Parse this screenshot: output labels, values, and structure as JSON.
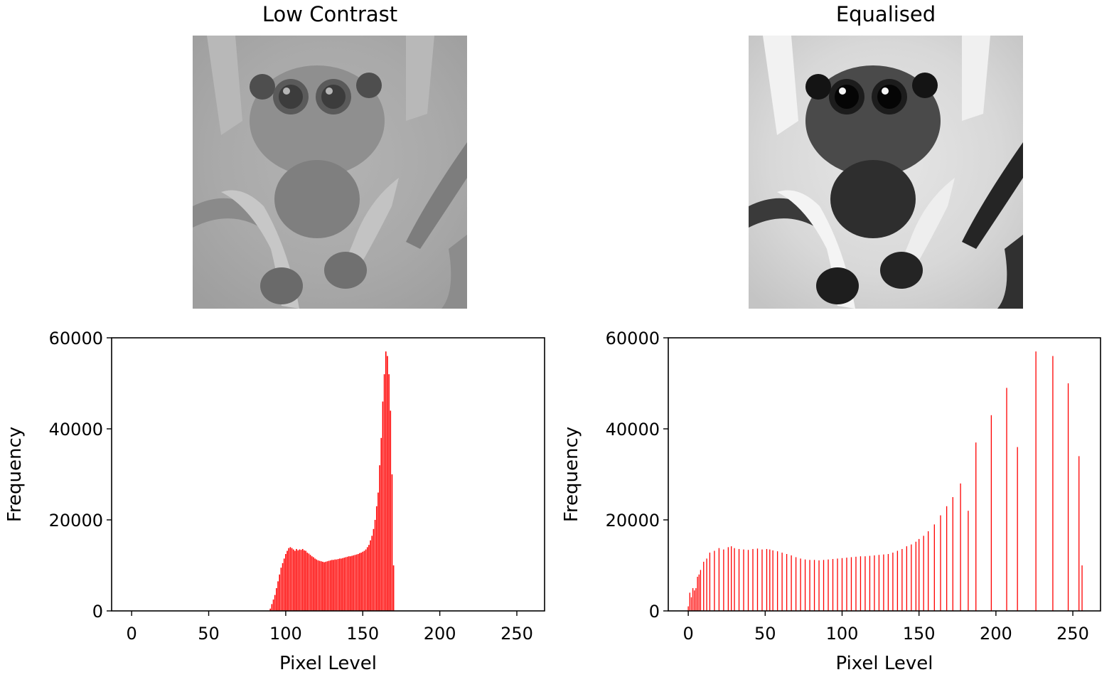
{
  "panels": {
    "left_title": "Low Contrast",
    "right_title": "Equalised"
  },
  "images": [
    {
      "name": "low-contrast-spider-photo",
      "subject": "jumping spider close-up, low contrast grayscale"
    },
    {
      "name": "equalised-spider-photo",
      "subject": "jumping spider close-up, histogram-equalised grayscale"
    }
  ],
  "chart_data": [
    {
      "type": "bar",
      "title": "",
      "xlabel": "Pixel Level",
      "ylabel": "Frequency",
      "xlim": [
        -13,
        268
      ],
      "ylim": [
        0,
        60000
      ],
      "xticks": [
        0,
        50,
        100,
        150,
        200,
        250
      ],
      "yticks": [
        0,
        20000,
        40000,
        60000
      ],
      "color": "#ff0000",
      "x": [
        90,
        91,
        92,
        93,
        94,
        95,
        96,
        97,
        98,
        99,
        100,
        101,
        102,
        103,
        104,
        105,
        106,
        107,
        108,
        109,
        110,
        111,
        112,
        113,
        114,
        115,
        116,
        117,
        118,
        119,
        120,
        121,
        122,
        123,
        124,
        125,
        126,
        127,
        128,
        129,
        130,
        131,
        132,
        133,
        134,
        135,
        136,
        137,
        138,
        139,
        140,
        141,
        142,
        143,
        144,
        145,
        146,
        147,
        148,
        149,
        150,
        151,
        152,
        153,
        154,
        155,
        156,
        157,
        158,
        159,
        160,
        161,
        162,
        163,
        164,
        165,
        166,
        167,
        168,
        169,
        170,
        171,
        172,
        173,
        174
      ],
      "values": [
        500,
        1500,
        2500,
        3500,
        5000,
        6500,
        8000,
        9500,
        10500,
        11500,
        12500,
        13200,
        13800,
        14000,
        13800,
        13500,
        13200,
        13600,
        13300,
        13500,
        13400,
        13600,
        13300,
        13200,
        12800,
        12600,
        12300,
        12000,
        11800,
        11500,
        11300,
        11100,
        11000,
        10900,
        10800,
        10700,
        10800,
        10900,
        11000,
        11100,
        11200,
        11200,
        11300,
        11300,
        11400,
        11500,
        11500,
        11600,
        11700,
        11800,
        11900,
        12000,
        12000,
        12100,
        12200,
        12300,
        12400,
        12500,
        12700,
        12800,
        13000,
        13200,
        13500,
        14000,
        14500,
        15500,
        16500,
        18000,
        20000,
        23000,
        26000,
        32000,
        38000,
        46000,
        52000,
        57000,
        56000,
        52000,
        44000,
        30000,
        10000,
        0,
        0,
        0,
        0
      ]
    },
    {
      "type": "bar",
      "title": "",
      "xlabel": "Pixel Level",
      "ylabel": "Frequency",
      "xlim": [
        -13,
        268
      ],
      "ylim": [
        0,
        60000
      ],
      "xticks": [
        0,
        50,
        100,
        150,
        200,
        250
      ],
      "yticks": [
        0,
        20000,
        40000,
        60000
      ],
      "color": "#ff0000",
      "x": [
        0,
        1,
        2,
        3,
        4,
        5,
        6,
        7,
        8,
        10,
        12,
        14,
        17,
        20,
        23,
        26,
        28,
        30,
        33,
        36,
        39,
        42,
        45,
        48,
        51,
        53,
        55,
        58,
        61,
        64,
        67,
        70,
        73,
        76,
        79,
        82,
        85,
        88,
        91,
        94,
        97,
        100,
        103,
        106,
        109,
        112,
        115,
        118,
        121,
        124,
        127,
        130,
        133,
        136,
        139,
        142,
        145,
        148,
        150,
        153,
        156,
        160,
        164,
        168,
        172,
        177,
        182,
        187,
        197,
        207,
        214,
        226,
        237,
        247,
        254,
        256
      ],
      "values": [
        1000,
        4000,
        3000,
        5000,
        4500,
        5000,
        7500,
        8000,
        9000,
        10800,
        11500,
        12800,
        13200,
        13800,
        13500,
        14000,
        14200,
        13800,
        13600,
        13500,
        13400,
        13600,
        13700,
        13500,
        13600,
        13500,
        13300,
        13100,
        12800,
        12500,
        12200,
        11800,
        11500,
        11300,
        11200,
        11200,
        11100,
        11200,
        11300,
        11400,
        11500,
        11600,
        11700,
        11800,
        11900,
        12000,
        12000,
        12100,
        12200,
        12300,
        12400,
        12500,
        12800,
        13200,
        13600,
        14200,
        14600,
        15200,
        15800,
        16500,
        17500,
        19000,
        21000,
        23000,
        25000,
        28000,
        22000,
        37000,
        43000,
        49000,
        36000,
        57000,
        56000,
        50000,
        34000,
        10000
      ]
    }
  ]
}
